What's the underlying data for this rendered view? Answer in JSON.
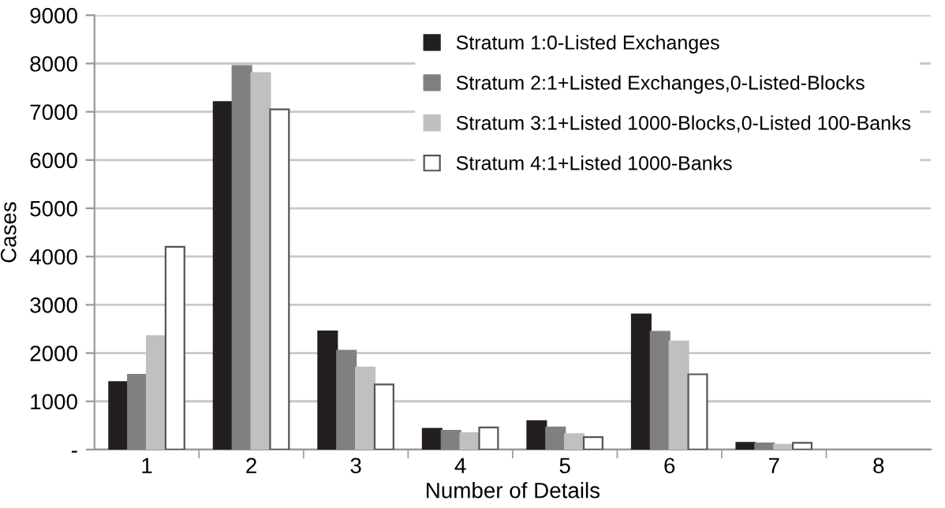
{
  "chart_data": {
    "type": "bar",
    "xlabel": "Number of Details",
    "ylabel": "Cases",
    "categories": [
      "1",
      "2",
      "3",
      "4",
      "5",
      "6",
      "7",
      "8"
    ],
    "series": [
      {
        "name": "Stratum 1:0-Listed Exchanges",
        "color": "#231f20",
        "values": [
          1400,
          7200,
          2450,
          430,
          590,
          2800,
          140,
          0
        ]
      },
      {
        "name": "Stratum 2:1+Listed Exchanges,0-Listed-Blocks",
        "color": "#808080",
        "values": [
          1550,
          7950,
          2050,
          390,
          460,
          2440,
          130,
          0
        ]
      },
      {
        "name": "Stratum 3:1+Listed 1000-Blocks,0-Listed 100-Banks",
        "color": "#c0c0c0",
        "values": [
          2350,
          7800,
          1700,
          340,
          320,
          2240,
          100,
          0
        ]
      },
      {
        "name": "Stratum 4:1+Listed 1000-Banks",
        "color": "#ffffff",
        "values": [
          4200,
          7050,
          1350,
          460,
          260,
          1560,
          140,
          0
        ]
      }
    ],
    "ylim": [
      0,
      9000
    ],
    "yticks": [
      {
        "value": 0,
        "label": "-"
      },
      1000,
      2000,
      3000,
      4000,
      5000,
      6000,
      7000,
      8000,
      9000
    ],
    "grid": "y",
    "legend": "top right"
  }
}
